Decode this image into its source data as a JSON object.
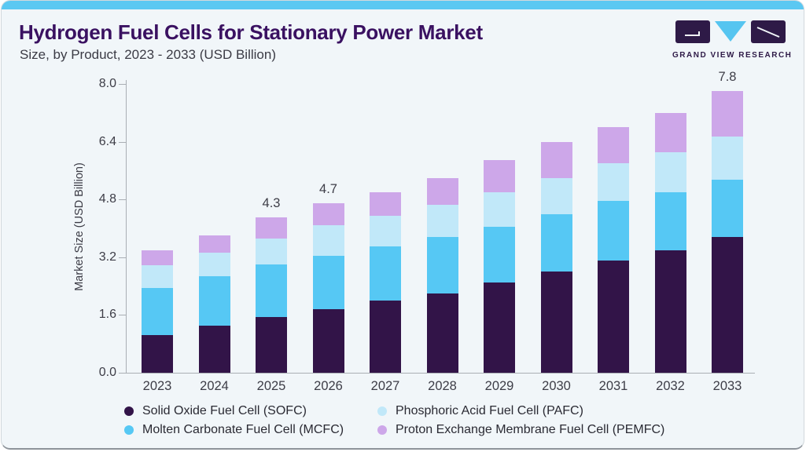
{
  "header": {
    "title": "Hydrogen Fuel Cells for Stationary Power Market",
    "subtitle": "Size, by Product, 2023 - 2033 (USD Billion)"
  },
  "logo": {
    "text": "GRAND VIEW RESEARCH"
  },
  "colors": {
    "accent_strip": "#5bc8f2",
    "card_background": "#f1f6f9",
    "title_text": "#3a1161",
    "axis_line": "#a9aeb4",
    "axis_text": "#3d3d47",
    "logo_dark": "#2e1a47",
    "logo_blue": "#56c5f0"
  },
  "chart_data": {
    "type": "bar",
    "stacked": true,
    "title": "Hydrogen Fuel Cells for Stationary Power Market Size, by Product, 2023 - 2033 (USD Billion)",
    "xlabel": "",
    "ylabel": "Market Size (USD Billion)",
    "ylim": [
      0,
      8
    ],
    "yticks": [
      0.0,
      1.6,
      3.2,
      4.8,
      6.4,
      8.0
    ],
    "grid": false,
    "legend_position": "bottom",
    "categories": [
      "2023",
      "2024",
      "2025",
      "2026",
      "2027",
      "2028",
      "2029",
      "2030",
      "2031",
      "2032",
      "2033"
    ],
    "series": [
      {
        "name": "Solid Oxide Fuel Cell (SOFC)",
        "color": "#321448",
        "values": [
          1.05,
          1.3,
          1.55,
          1.75,
          2.0,
          2.2,
          2.5,
          2.8,
          3.1,
          3.4,
          3.75
        ]
      },
      {
        "name": "Molten Carbonate Fuel Cell (MCFC)",
        "color": "#56c8f4",
        "values": [
          1.3,
          1.38,
          1.45,
          1.48,
          1.5,
          1.55,
          1.55,
          1.6,
          1.65,
          1.6,
          1.6
        ]
      },
      {
        "name": "Phosphoric Acid Fuel Cell (PAFC)",
        "color": "#c1e8f9",
        "values": [
          0.63,
          0.65,
          0.72,
          0.85,
          0.85,
          0.9,
          0.95,
          1.0,
          1.05,
          1.1,
          1.2
        ]
      },
      {
        "name": "Proton Exchange Membrane Fuel Cell (PEMFC)",
        "color": "#cda7e9",
        "values": [
          0.42,
          0.47,
          0.58,
          0.62,
          0.65,
          0.75,
          0.9,
          1.0,
          1.0,
          1.1,
          1.25
        ]
      }
    ],
    "totals": [
      3.4,
      3.8,
      4.3,
      4.7,
      5.0,
      5.4,
      5.9,
      6.4,
      6.8,
      7.2,
      7.8
    ],
    "total_labels": {
      "2025": "4.3",
      "2026": "4.7",
      "2033": "7.8"
    }
  }
}
